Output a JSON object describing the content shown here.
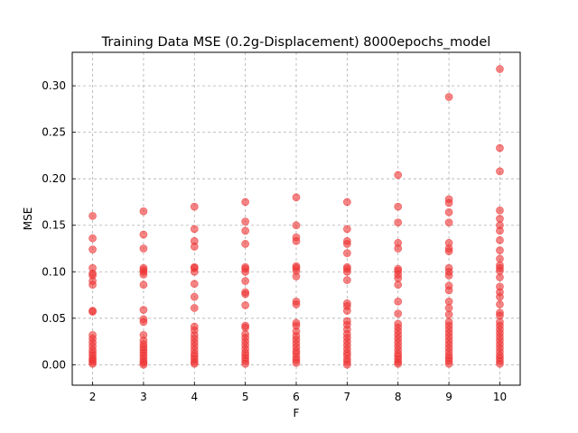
{
  "chart_data": {
    "type": "scatter",
    "title": "Training Data MSE (0.2g-Displacement) 8000epochs_model",
    "xlabel": "F",
    "ylabel": "MSE",
    "xlim": [
      1.6,
      10.4
    ],
    "ylim": [
      -0.022,
      0.336
    ],
    "xticks": [
      2,
      3,
      4,
      5,
      6,
      7,
      8,
      9,
      10
    ],
    "xtick_labels": [
      "2",
      "3",
      "4",
      "5",
      "6",
      "7",
      "8",
      "9",
      "10"
    ],
    "yticks": [
      0.0,
      0.05,
      0.1,
      0.15,
      0.2,
      0.25,
      0.3
    ],
    "ytick_labels": [
      "0.00",
      "0.05",
      "0.10",
      "0.15",
      "0.20",
      "0.25",
      "0.30"
    ],
    "grid": true,
    "marker_color": "#ee3333",
    "series": [
      {
        "points": [
          [
            2,
            0.16
          ],
          [
            2,
            0.136
          ],
          [
            2,
            0.124
          ],
          [
            2,
            0.104
          ],
          [
            2,
            0.098
          ],
          [
            2,
            0.096
          ],
          [
            2,
            0.09
          ],
          [
            2,
            0.086
          ],
          [
            2,
            0.058
          ],
          [
            2,
            0.057
          ],
          [
            2,
            0.032
          ],
          [
            2,
            0.028
          ],
          [
            2,
            0.024
          ],
          [
            2,
            0.02
          ],
          [
            2,
            0.016
          ],
          [
            2,
            0.013
          ],
          [
            2,
            0.01
          ],
          [
            2,
            0.007
          ],
          [
            2,
            0.005
          ],
          [
            2,
            0.003
          ],
          [
            2,
            0.001
          ],
          [
            3,
            0.165
          ],
          [
            3,
            0.14
          ],
          [
            3,
            0.125
          ],
          [
            3,
            0.104
          ],
          [
            3,
            0.102
          ],
          [
            3,
            0.1
          ],
          [
            3,
            0.097
          ],
          [
            3,
            0.086
          ],
          [
            3,
            0.059
          ],
          [
            3,
            0.049
          ],
          [
            3,
            0.046
          ],
          [
            3,
            0.032
          ],
          [
            3,
            0.026
          ],
          [
            3,
            0.022
          ],
          [
            3,
            0.019
          ],
          [
            3,
            0.016
          ],
          [
            3,
            0.013
          ],
          [
            3,
            0.01
          ],
          [
            3,
            0.007
          ],
          [
            3,
            0.004
          ],
          [
            3,
            0.002
          ],
          [
            3,
            0.0
          ],
          [
            4,
            0.17
          ],
          [
            4,
            0.146
          ],
          [
            4,
            0.133
          ],
          [
            4,
            0.127
          ],
          [
            4,
            0.105
          ],
          [
            4,
            0.104
          ],
          [
            4,
            0.1
          ],
          [
            4,
            0.087
          ],
          [
            4,
            0.073
          ],
          [
            4,
            0.061
          ],
          [
            4,
            0.041
          ],
          [
            4,
            0.037
          ],
          [
            4,
            0.032
          ],
          [
            4,
            0.028
          ],
          [
            4,
            0.024
          ],
          [
            4,
            0.02
          ],
          [
            4,
            0.016
          ],
          [
            4,
            0.012
          ],
          [
            4,
            0.009
          ],
          [
            4,
            0.006
          ],
          [
            4,
            0.003
          ],
          [
            4,
            0.001
          ],
          [
            5,
            0.175
          ],
          [
            5,
            0.154
          ],
          [
            5,
            0.144
          ],
          [
            5,
            0.13
          ],
          [
            5,
            0.105
          ],
          [
            5,
            0.103
          ],
          [
            5,
            0.1
          ],
          [
            5,
            0.09
          ],
          [
            5,
            0.078
          ],
          [
            5,
            0.076
          ],
          [
            5,
            0.064
          ],
          [
            5,
            0.042
          ],
          [
            5,
            0.04
          ],
          [
            5,
            0.033
          ],
          [
            5,
            0.029
          ],
          [
            5,
            0.025
          ],
          [
            5,
            0.021
          ],
          [
            5,
            0.017
          ],
          [
            5,
            0.013
          ],
          [
            5,
            0.01
          ],
          [
            5,
            0.007
          ],
          [
            5,
            0.004
          ],
          [
            5,
            0.001
          ],
          [
            6,
            0.18
          ],
          [
            6,
            0.15
          ],
          [
            6,
            0.137
          ],
          [
            6,
            0.133
          ],
          [
            6,
            0.106
          ],
          [
            6,
            0.104
          ],
          [
            6,
            0.101
          ],
          [
            6,
            0.095
          ],
          [
            6,
            0.068
          ],
          [
            6,
            0.065
          ],
          [
            6,
            0.045
          ],
          [
            6,
            0.042
          ],
          [
            6,
            0.036
          ],
          [
            6,
            0.031
          ],
          [
            6,
            0.027
          ],
          [
            6,
            0.023
          ],
          [
            6,
            0.019
          ],
          [
            6,
            0.015
          ],
          [
            6,
            0.012
          ],
          [
            6,
            0.008
          ],
          [
            6,
            0.005
          ],
          [
            6,
            0.002
          ],
          [
            7,
            0.175
          ],
          [
            7,
            0.146
          ],
          [
            7,
            0.133
          ],
          [
            7,
            0.13
          ],
          [
            7,
            0.12
          ],
          [
            7,
            0.105
          ],
          [
            7,
            0.103
          ],
          [
            7,
            0.1
          ],
          [
            7,
            0.091
          ],
          [
            7,
            0.066
          ],
          [
            7,
            0.063
          ],
          [
            7,
            0.058
          ],
          [
            7,
            0.047
          ],
          [
            7,
            0.043
          ],
          [
            7,
            0.038
          ],
          [
            7,
            0.033
          ],
          [
            7,
            0.029
          ],
          [
            7,
            0.025
          ],
          [
            7,
            0.021
          ],
          [
            7,
            0.017
          ],
          [
            7,
            0.013
          ],
          [
            7,
            0.01
          ],
          [
            7,
            0.006
          ],
          [
            7,
            0.003
          ],
          [
            7,
            0.0
          ],
          [
            8,
            0.204
          ],
          [
            8,
            0.17
          ],
          [
            8,
            0.153
          ],
          [
            8,
            0.131
          ],
          [
            8,
            0.125
          ],
          [
            8,
            0.103
          ],
          [
            8,
            0.101
          ],
          [
            8,
            0.097
          ],
          [
            8,
            0.093
          ],
          [
            8,
            0.086
          ],
          [
            8,
            0.068
          ],
          [
            8,
            0.055
          ],
          [
            8,
            0.044
          ],
          [
            8,
            0.04
          ],
          [
            8,
            0.036
          ],
          [
            8,
            0.032
          ],
          [
            8,
            0.028
          ],
          [
            8,
            0.024
          ],
          [
            8,
            0.02
          ],
          [
            8,
            0.016
          ],
          [
            8,
            0.012
          ],
          [
            8,
            0.009
          ],
          [
            8,
            0.006
          ],
          [
            8,
            0.003
          ],
          [
            8,
            0.001
          ],
          [
            9,
            0.288
          ],
          [
            9,
            0.178
          ],
          [
            9,
            0.174
          ],
          [
            9,
            0.164
          ],
          [
            9,
            0.153
          ],
          [
            9,
            0.131
          ],
          [
            9,
            0.125
          ],
          [
            9,
            0.122
          ],
          [
            9,
            0.104
          ],
          [
            9,
            0.1
          ],
          [
            9,
            0.096
          ],
          [
            9,
            0.085
          ],
          [
            9,
            0.08
          ],
          [
            9,
            0.068
          ],
          [
            9,
            0.061
          ],
          [
            9,
            0.054
          ],
          [
            9,
            0.046
          ],
          [
            9,
            0.042
          ],
          [
            9,
            0.038
          ],
          [
            9,
            0.034
          ],
          [
            9,
            0.03
          ],
          [
            9,
            0.026
          ],
          [
            9,
            0.022
          ],
          [
            9,
            0.018
          ],
          [
            9,
            0.014
          ],
          [
            9,
            0.01
          ],
          [
            9,
            0.007
          ],
          [
            9,
            0.004
          ],
          [
            9,
            0.001
          ],
          [
            10,
            0.318
          ],
          [
            10,
            0.233
          ],
          [
            10,
            0.208
          ],
          [
            10,
            0.166
          ],
          [
            10,
            0.157
          ],
          [
            10,
            0.15
          ],
          [
            10,
            0.144
          ],
          [
            10,
            0.134
          ],
          [
            10,
            0.123
          ],
          [
            10,
            0.114
          ],
          [
            10,
            0.107
          ],
          [
            10,
            0.104
          ],
          [
            10,
            0.101
          ],
          [
            10,
            0.094
          ],
          [
            10,
            0.084
          ],
          [
            10,
            0.078
          ],
          [
            10,
            0.073
          ],
          [
            10,
            0.065
          ],
          [
            10,
            0.056
          ],
          [
            10,
            0.053
          ],
          [
            10,
            0.046
          ],
          [
            10,
            0.042
          ],
          [
            10,
            0.038
          ],
          [
            10,
            0.034
          ],
          [
            10,
            0.03
          ],
          [
            10,
            0.026
          ],
          [
            10,
            0.022
          ],
          [
            10,
            0.018
          ],
          [
            10,
            0.014
          ],
          [
            10,
            0.01
          ],
          [
            10,
            0.007
          ],
          [
            10,
            0.004
          ],
          [
            10,
            0.001
          ]
        ]
      }
    ]
  }
}
